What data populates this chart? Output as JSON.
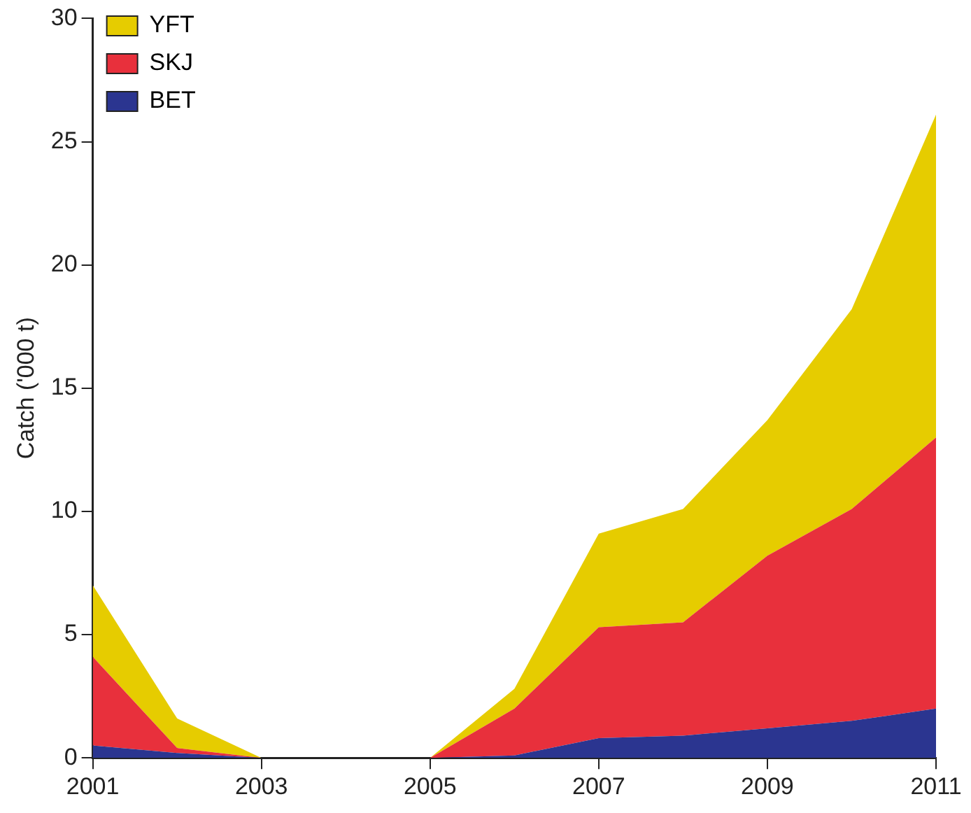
{
  "chart_data": {
    "type": "area",
    "stacked": true,
    "ylabel": "Catch ('000 t)",
    "x": [
      2001,
      2002,
      2003,
      2004,
      2005,
      2006,
      2007,
      2008,
      2009,
      2010,
      2011
    ],
    "series": [
      {
        "name": "BET",
        "color": "#2b3590",
        "values": [
          0.5,
          0.2,
          0,
          0,
          0,
          0.1,
          0.8,
          0.9,
          1.2,
          1.5,
          2.0
        ]
      },
      {
        "name": "SKJ",
        "color": "#e8303c",
        "values": [
          3.6,
          0.2,
          0,
          0,
          0,
          1.9,
          4.5,
          4.6,
          7.0,
          8.6,
          11.0
        ]
      },
      {
        "name": "YFT",
        "color": "#e6cc00",
        "values": [
          2.9,
          1.2,
          0,
          0,
          0,
          0.8,
          3.8,
          4.6,
          5.5,
          8.1,
          13.1
        ]
      }
    ],
    "xlim": [
      2001,
      2011
    ],
    "xticks": [
      2001,
      2003,
      2005,
      2007,
      2009,
      2011
    ],
    "ylim": [
      0,
      30
    ],
    "yticks": [
      0,
      5,
      10,
      15,
      20,
      25,
      30
    ],
    "grid": false,
    "legend": "top left"
  }
}
